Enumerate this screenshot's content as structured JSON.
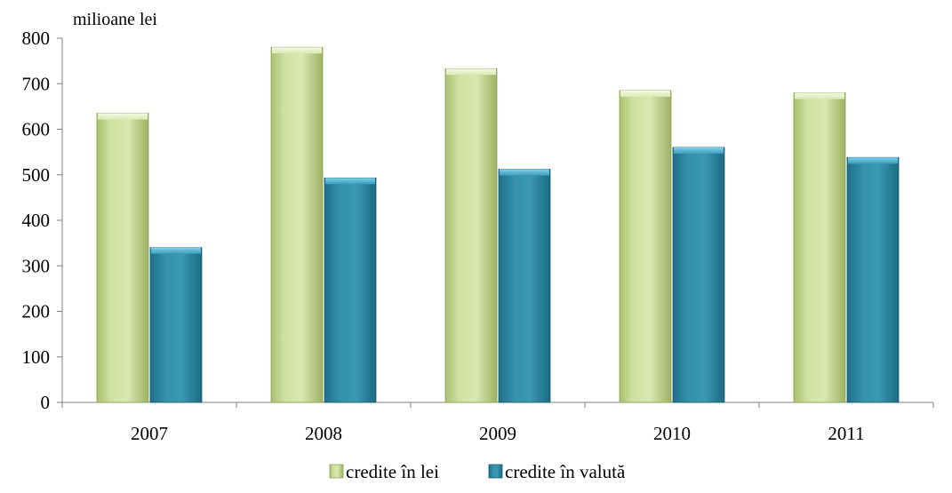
{
  "chart_data": {
    "type": "bar",
    "unit_label": "milioane lei",
    "title": "",
    "xlabel": "",
    "ylabel": "",
    "categories": [
      "2007",
      "2008",
      "2009",
      "2010",
      "2011"
    ],
    "series": [
      {
        "name": "credite în lei",
        "values": [
          635,
          780,
          733,
          685,
          680
        ],
        "color": "#cfe0a0"
      },
      {
        "name": "credite în valută",
        "values": [
          340,
          493,
          512,
          560,
          538
        ],
        "color": "#2f8aa6"
      }
    ],
    "ylim": [
      0,
      800
    ],
    "yticks": [
      0,
      100,
      200,
      300,
      400,
      500,
      600,
      700,
      800
    ],
    "grid": false,
    "legend_position": "bottom-center"
  }
}
